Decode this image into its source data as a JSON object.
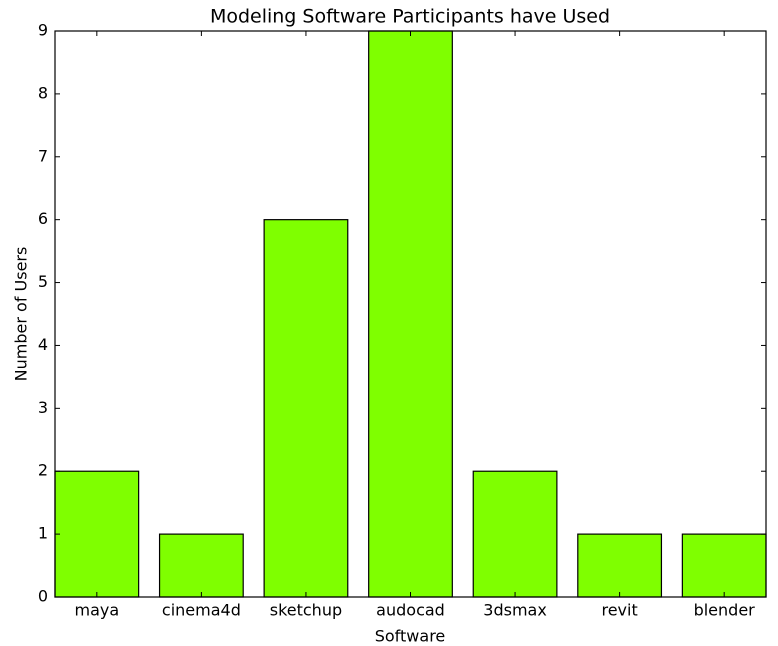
{
  "chart_data": {
    "type": "bar",
    "title": "Modeling Software Participants have Used",
    "xlabel": "Software",
    "ylabel": "Number of Users",
    "categories": [
      "maya",
      "cinema4d",
      "sketchup",
      "audocad",
      "3dsmax",
      "revit",
      "blender"
    ],
    "values": [
      2,
      1,
      6,
      9,
      2,
      1,
      1
    ],
    "color": "#7fff00",
    "ylim": [
      0,
      9
    ],
    "yticks": [
      0,
      1,
      2,
      3,
      4,
      5,
      6,
      7,
      8,
      9
    ],
    "grid": false
  }
}
